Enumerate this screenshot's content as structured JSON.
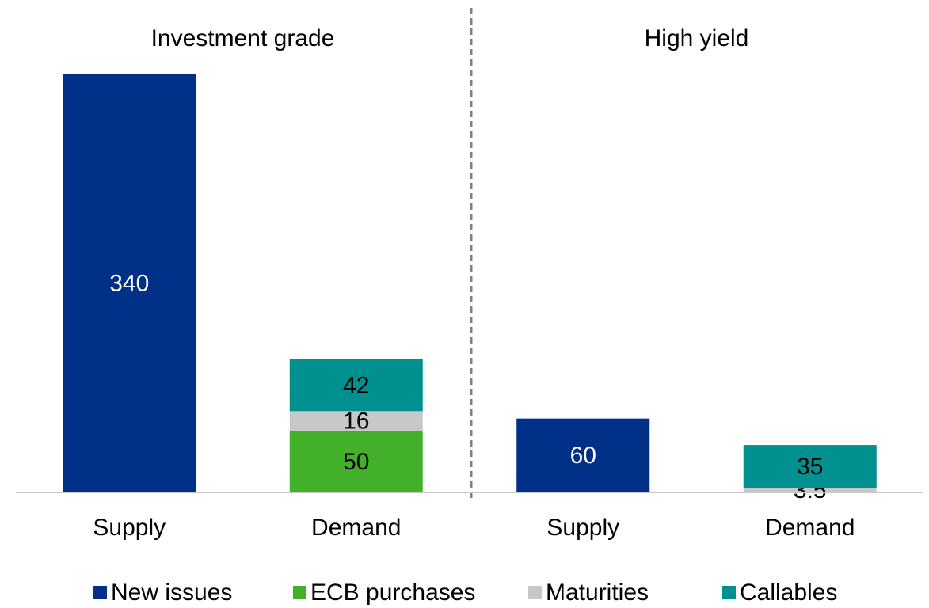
{
  "chart_data": {
    "type": "stacked_bar",
    "groups": [
      "Investment grade",
      "High yield"
    ],
    "categories": [
      "Supply",
      "Demand",
      "Supply",
      "Demand"
    ],
    "series": [
      {
        "name": "New issues",
        "color": "#003087",
        "label_color": "#ffffff",
        "values": [
          340,
          null,
          60,
          null
        ]
      },
      {
        "name": "ECB purchases",
        "color": "#43b02a",
        "label_color": "#000000",
        "values": [
          null,
          50,
          null,
          null
        ]
      },
      {
        "name": "Maturities",
        "color": "#c8c8c8",
        "label_color": "#000000",
        "values": [
          null,
          16,
          null,
          3.5
        ]
      },
      {
        "name": "Callables",
        "color": "#009090",
        "label_color": "#000000",
        "values": [
          null,
          42,
          null,
          35
        ]
      }
    ],
    "legend": "bottom"
  }
}
